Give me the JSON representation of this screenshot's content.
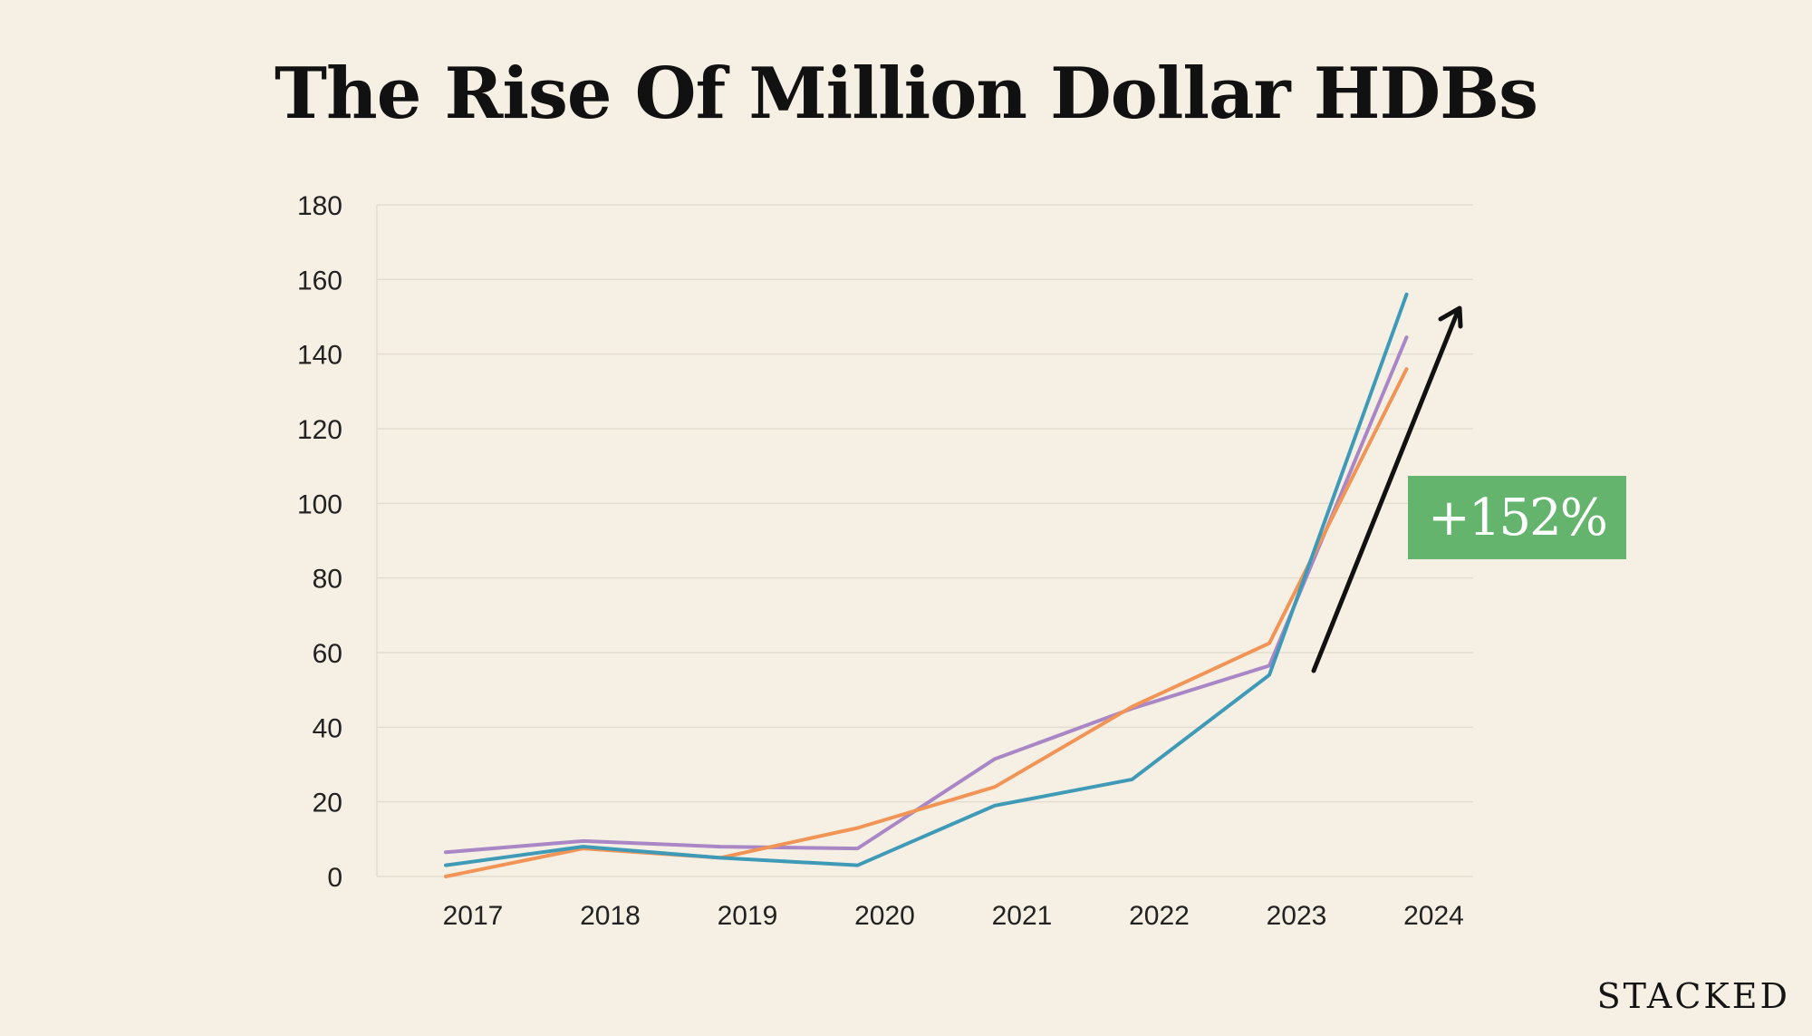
{
  "chart_data": {
    "type": "line",
    "title": "The Rise Of Million Dollar HDBs",
    "xlabel": "",
    "ylabel": "",
    "categories": [
      "2017",
      "2018",
      "2019",
      "2020",
      "2021",
      "2022",
      "2023",
      "2024"
    ],
    "ylim": [
      0,
      180
    ],
    "yticks": [
      0,
      20,
      40,
      60,
      80,
      100,
      120,
      140,
      160,
      180
    ],
    "grid": true,
    "legend": "none",
    "series": [
      {
        "name": "purple",
        "color": "#a987c6",
        "values": [
          6.5,
          9.5,
          8,
          7.5,
          31.5,
          45,
          56.5,
          144.5
        ]
      },
      {
        "name": "orange",
        "color": "#f29455",
        "values": [
          0,
          7.5,
          5,
          13,
          24,
          45.5,
          62.5,
          136
        ]
      },
      {
        "name": "teal",
        "color": "#3e9ab7",
        "values": [
          3,
          8,
          5,
          3,
          19,
          26,
          54,
          156
        ]
      }
    ],
    "annotation": {
      "text": "+152%",
      "color": "#64b46d",
      "arrow_color": "#111111"
    }
  },
  "brand": "STACKED"
}
